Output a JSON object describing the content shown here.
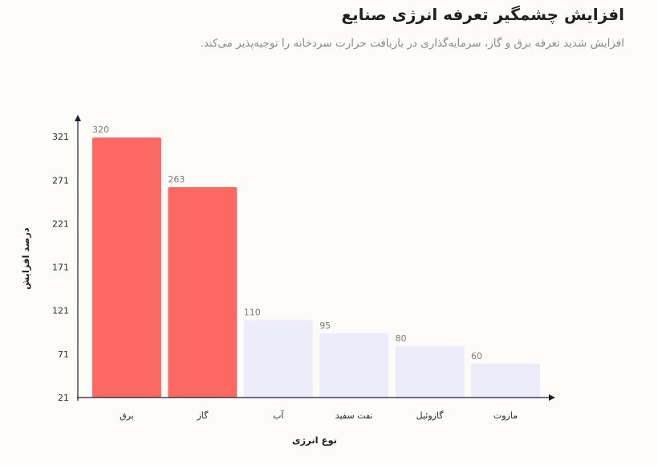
{
  "header": {
    "title": "افزایش چشمگیر تعرفه انرژی صنایع",
    "subtitle": "افزایش شدید تعرفه برق و گاز، سرمایه‌گذاری در بازیافت حرارت سردخانه را توجیه‌پذیر می‌کند."
  },
  "chart_data": {
    "type": "bar",
    "categories": [
      "برق",
      "گاز",
      "آب",
      "نفت سفید",
      "گازوئیل",
      "مازوت"
    ],
    "values": [
      320,
      263,
      110,
      95,
      80,
      60
    ],
    "highlight": [
      true,
      true,
      false,
      false,
      false,
      false
    ],
    "xlabel": "نوع انرژی",
    "ylabel": "درصد افزایش",
    "ylim": [
      21,
      335
    ],
    "yticks": [
      21,
      71,
      121,
      171,
      221,
      271,
      321
    ],
    "grid": false,
    "legend": "none",
    "colors": {
      "highlight": "#fb6962",
      "muted": "#ececfb",
      "axis": "#1e1e3c"
    }
  }
}
